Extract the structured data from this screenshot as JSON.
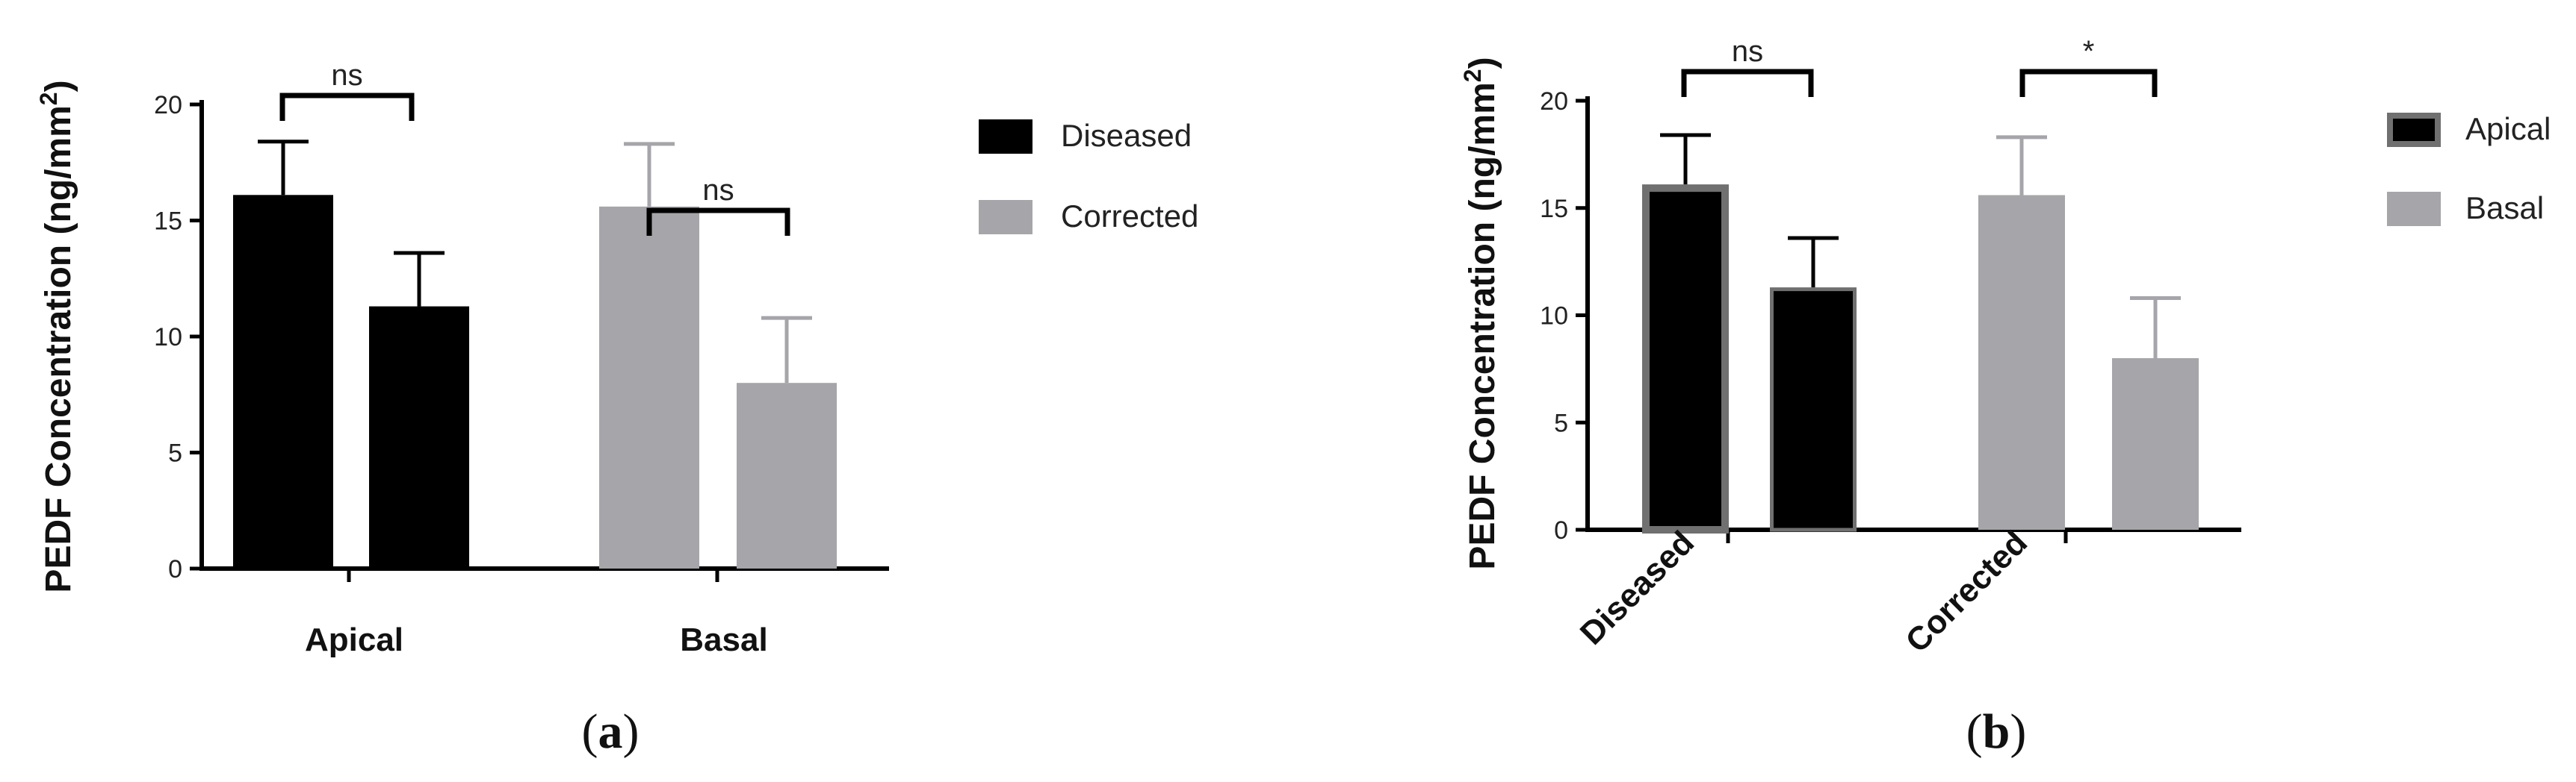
{
  "colors": {
    "diseased": "#000000",
    "corrected": "#a5a5aa",
    "apical_outline": "#707070",
    "axis": "#000000"
  },
  "chart_data": [
    {
      "type": "bar",
      "panel": "(a)",
      "panel_letter": "a",
      "ylabel_main": "PEDF Concentration (ng/mm",
      "ylabel_sup": "2",
      "ylabel_end": ")",
      "ylim": [
        0,
        20
      ],
      "yticks": [
        "0",
        "5",
        "10",
        "15",
        "20"
      ],
      "categories": [
        "Apical",
        "Basal"
      ],
      "series": [
        {
          "name": "Diseased",
          "values": [
            16.1,
            11.3
          ],
          "errors": [
            2.3,
            2.3
          ]
        },
        {
          "name": "Corrected",
          "values": [
            15.6,
            8.0
          ],
          "errors": [
            2.7,
            2.8
          ]
        }
      ],
      "significance": [
        "ns",
        "ns"
      ],
      "legend": {
        "placement": "right",
        "entries": [
          "Diseased",
          "Corrected"
        ]
      }
    },
    {
      "type": "bar",
      "panel": "(b)",
      "panel_letter": "b",
      "ylabel_main": "PEDF Concentration (ng/mm",
      "ylabel_sup": "2",
      "ylabel_end": ")",
      "ylim": [
        0,
        20
      ],
      "yticks": [
        "0",
        "5",
        "10",
        "15",
        "20"
      ],
      "categories": [
        "Diseased",
        "Corrected"
      ],
      "series": [
        {
          "name": "Apical",
          "values": [
            16.1,
            15.6
          ],
          "errors": [
            2.3,
            2.7
          ]
        },
        {
          "name": "Basal",
          "values": [
            11.3,
            8.0
          ],
          "errors": [
            2.3,
            2.8
          ]
        }
      ],
      "significance": [
        "ns",
        "*"
      ],
      "legend": {
        "placement": "right",
        "entries": [
          "Apical",
          "Basal"
        ]
      }
    }
  ]
}
